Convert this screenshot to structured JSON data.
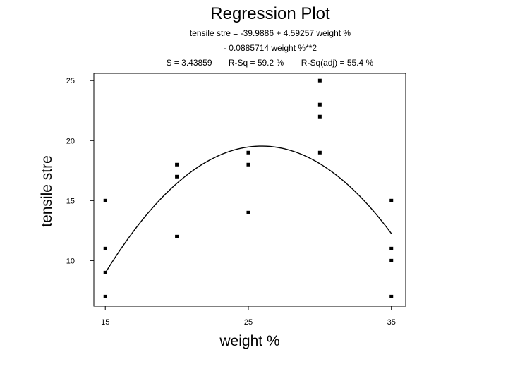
{
  "chart_data": {
    "type": "scatter",
    "title": "Regression Plot",
    "equation_line1": "tensile stre = -39.9886 + 4.59257 weight %",
    "equation_line2": "- 0.0885714 weight %**2",
    "stats": {
      "s": "S = 3.43859",
      "rsq": "R-Sq = 59.2 %",
      "rsq_adj": "R-Sq(adj) = 55.4 %"
    },
    "xlabel": "weight %",
    "ylabel": "tensile stre",
    "xlim": [
      14.2,
      36.0
    ],
    "ylim": [
      6.2,
      25.6
    ],
    "xticks": [
      15,
      25,
      35
    ],
    "yticks": [
      10,
      15,
      20,
      25
    ],
    "grid": false,
    "points": {
      "x": [
        15,
        15,
        15,
        15,
        20,
        20,
        20,
        25,
        25,
        25,
        30,
        30,
        30,
        30,
        35,
        35,
        35,
        35
      ],
      "y": [
        7,
        9,
        11,
        15,
        12,
        17,
        18,
        14,
        18,
        19,
        19,
        22,
        23,
        25,
        7,
        10,
        11,
        15
      ]
    },
    "fit": {
      "b0": -39.9886,
      "b1": 4.59257,
      "b2": -0.0885714,
      "x_range": [
        15,
        35
      ]
    }
  }
}
